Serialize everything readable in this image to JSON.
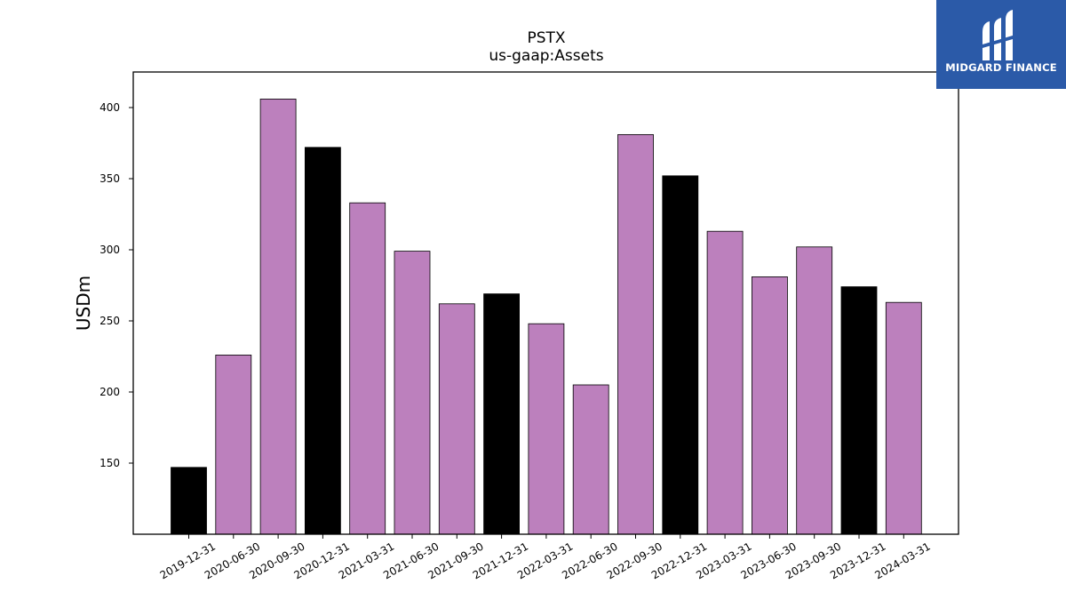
{
  "logo": {
    "text": "MIDGARD FINANCE",
    "icon": "midgard-finance-logo-icon",
    "background": "#2b5aa8"
  },
  "chart_data": {
    "type": "bar",
    "title": "PSTX",
    "subtitle": "us-gaap:Assets",
    "xlabel": "",
    "ylabel": "USDm",
    "ylim": [
      100,
      425
    ],
    "yticks": [
      150,
      200,
      250,
      300,
      350,
      400
    ],
    "grid": false,
    "categories": [
      "2019-12-31",
      "2020-06-30",
      "2020-09-30",
      "2020-12-31",
      "2021-03-31",
      "2021-06-30",
      "2021-09-30",
      "2021-12-31",
      "2022-03-31",
      "2022-06-30",
      "2022-09-30",
      "2022-12-31",
      "2023-03-31",
      "2023-06-30",
      "2023-09-30",
      "2023-12-31",
      "2024-03-31"
    ],
    "values": [
      147,
      226,
      406,
      372,
      333,
      299,
      262,
      269,
      248,
      205,
      381,
      352,
      313,
      281,
      302,
      274,
      263
    ],
    "colors": {
      "annual": "#000000",
      "quarterly": "#bc80bd",
      "edge": "#000000"
    },
    "bar_color_keys": [
      "annual",
      "quarterly",
      "quarterly",
      "annual",
      "quarterly",
      "quarterly",
      "quarterly",
      "annual",
      "quarterly",
      "quarterly",
      "quarterly",
      "annual",
      "quarterly",
      "quarterly",
      "quarterly",
      "annual",
      "quarterly"
    ]
  }
}
